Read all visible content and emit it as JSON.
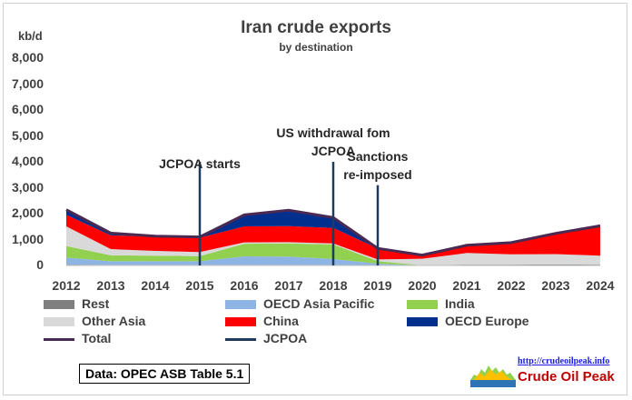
{
  "chart_data": {
    "type": "area",
    "title": "Iran crude exports",
    "subtitle": "by destination",
    "ylabel": "kb/d",
    "xlabel": "",
    "ylim": [
      0,
      8000
    ],
    "yticks": [
      "0",
      "1,000",
      "2,000",
      "3,000",
      "4,000",
      "5,000",
      "6,000",
      "7,000",
      "8,000"
    ],
    "x": [
      2012,
      2013,
      2014,
      2015,
      2016,
      2017,
      2018,
      2019,
      2020,
      2021,
      2022,
      2023,
      2024
    ],
    "series": [
      {
        "name": "Rest",
        "color": "#7f7f7f",
        "values": [
          30,
          20,
          20,
          20,
          20,
          20,
          20,
          10,
          10,
          30,
          30,
          40,
          30
        ]
      },
      {
        "name": "OECD Asia Pacific",
        "color": "#8db4e2",
        "values": [
          270,
          140,
          140,
          140,
          330,
          320,
          230,
          60,
          0,
          0,
          0,
          0,
          0
        ]
      },
      {
        "name": "India",
        "color": "#92d050",
        "values": [
          450,
          230,
          220,
          200,
          490,
          510,
          560,
          100,
          0,
          0,
          0,
          0,
          0
        ]
      },
      {
        "name": "Other Asia",
        "color": "#d9d9d9",
        "values": [
          760,
          240,
          180,
          160,
          50,
          50,
          40,
          60,
          250,
          450,
          400,
          400,
          350
        ]
      },
      {
        "name": "China",
        "color": "#ff0000",
        "values": [
          440,
          530,
          550,
          550,
          620,
          620,
          600,
          430,
          140,
          300,
          450,
          800,
          1150
        ]
      },
      {
        "name": "OECD Europe",
        "color": "#002f8e",
        "values": [
          200,
          80,
          20,
          30,
          440,
          610,
          400,
          0,
          0,
          0,
          0,
          0,
          0
        ]
      }
    ],
    "total": {
      "name": "Total",
      "color": "#4a2a52",
      "values": [
        2150,
        1250,
        1130,
        1100,
        1950,
        2130,
        1850,
        660,
        400,
        780,
        880,
        1240,
        1530
      ]
    },
    "jcpoa": {
      "name": "JCPOA",
      "color": "#1f3a5f"
    },
    "events": [
      {
        "year": 2015,
        "label_lines": [
          "JCPOA starts"
        ],
        "top_value": 4000
      },
      {
        "year": 2018,
        "label_lines": [
          "US withdrawal fom",
          "JCPOA"
        ],
        "top_value": 4000
      },
      {
        "year": 2019,
        "label_lines": [
          "Sanctions",
          "re-imposed"
        ],
        "top_value": 3100
      }
    ],
    "legend": [
      "Rest",
      "OECD Asia Pacific",
      "India",
      "Other Asia",
      "China",
      "OECD Europe",
      "Total",
      "JCPOA"
    ]
  },
  "source_note": "Data: OPEC ASB Table 5.1",
  "logo": {
    "url_text": "http://crudeoilpeak.info",
    "name": "Crude Oil Peak"
  }
}
